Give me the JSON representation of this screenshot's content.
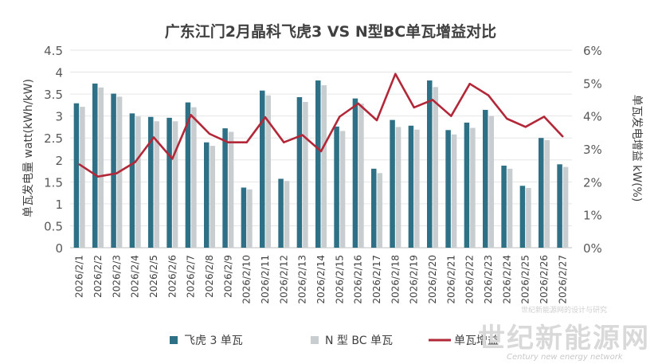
{
  "chart_data": {
    "type": "bar+line",
    "title": "广东江门2月晶科飞虎3 VS N型BC单瓦增益对比",
    "ylabel": "单瓦发电量 watt(kWh/kW)",
    "y2label": "单瓦发电增益 kW(%)",
    "ylim": [
      0,
      4.5
    ],
    "y2lim": [
      0,
      6
    ],
    "yticks": [
      "0",
      "0.5",
      "1",
      "1.5",
      "2",
      "2.5",
      "3",
      "3.5",
      "4",
      "4.5"
    ],
    "y2ticks": [
      "0%",
      "1%",
      "2%",
      "3%",
      "4%",
      "5%",
      "6%"
    ],
    "categories": [
      "2026/2/1",
      "2026/2/2",
      "2026/2/3",
      "2026/2/4",
      "2026/2/5",
      "2026/2/6",
      "2026/2/7",
      "2026/2/8",
      "2026/2/9",
      "2026/2/10",
      "2026/2/11",
      "2026/2/12",
      "2026/2/13",
      "2026/2/14",
      "2026/2/15",
      "2026/2/16",
      "2026/2/17",
      "2026/2/18",
      "2026/2/19",
      "2026/2/20",
      "2026/2/21",
      "2026/2/22",
      "2026/2/23",
      "2026/2/24",
      "2026/2/25",
      "2026/2/26",
      "2026/2/27"
    ],
    "series": [
      {
        "name": "飞虎 3 单瓦",
        "color": "#2e7085",
        "axis": "left",
        "values": [
          3.29,
          3.74,
          3.51,
          3.06,
          2.98,
          2.96,
          3.31,
          2.4,
          2.72,
          1.37,
          3.58,
          1.57,
          3.43,
          3.81,
          2.76,
          3.4,
          1.8,
          2.91,
          2.78,
          3.81,
          2.68,
          2.85,
          3.14,
          1.87,
          1.41,
          2.5,
          1.9
        ]
      },
      {
        "name": "N 型 BC 单瓦",
        "color": "#c8cdd0",
        "axis": "left",
        "values": [
          3.21,
          3.65,
          3.44,
          2.99,
          2.88,
          2.88,
          3.2,
          2.32,
          2.64,
          1.33,
          3.47,
          1.52,
          3.32,
          3.7,
          2.66,
          3.28,
          1.7,
          2.75,
          2.69,
          3.66,
          2.58,
          2.73,
          3.0,
          1.8,
          1.36,
          2.45,
          1.84
        ]
      },
      {
        "name": "单瓦增益",
        "color": "#b22838",
        "axis": "right",
        "values": [
          2.53,
          2.16,
          2.26,
          2.6,
          3.35,
          2.7,
          4.03,
          3.46,
          3.2,
          3.2,
          3.96,
          3.2,
          3.42,
          2.93,
          3.98,
          4.38,
          3.87,
          5.28,
          4.26,
          4.49,
          4.0,
          4.98,
          4.63,
          3.92,
          3.67,
          3.98,
          3.38
        ]
      }
    ]
  },
  "watermark": {
    "small": "世纪新能源网的设计与研究",
    "cn": "世纪新能源网",
    "en": "Century new energy network"
  }
}
